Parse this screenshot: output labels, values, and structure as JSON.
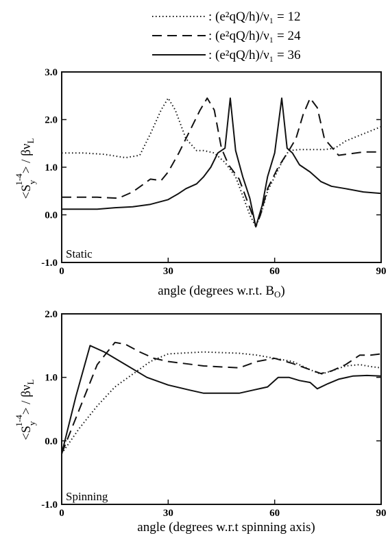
{
  "legend": [
    {
      "style": "dotted",
      "label": ": (e²qQ/h)/ν₁ = 12"
    },
    {
      "style": "dashed",
      "label": ": (e²qQ/h)/ν₁ = 24"
    },
    {
      "style": "solid",
      "label": ": (e²qQ/h)/ν₁ = 36"
    }
  ],
  "chart_data": [
    {
      "type": "line",
      "panel_label": "Static",
      "xlabel": "angle (degrees w.r.t. B",
      "xlabel_sub": "O",
      "xlabel_suffix": ")",
      "ylabel": "<S_y^{1-4}> / βν_L",
      "xlim": [
        0,
        90
      ],
      "ylim": [
        -1.0,
        3.0
      ],
      "xticks": [
        0,
        30,
        60,
        90
      ],
      "yticks": [
        -1.0,
        0.0,
        1.0,
        2.0,
        3.0
      ],
      "ytick_labels": [
        "-1.0",
        "0.0",
        "1.0",
        "2.0",
        "3.0"
      ],
      "series": [
        {
          "style": "dotted",
          "x": [
            0,
            6,
            12,
            18,
            22,
            25,
            28,
            30,
            32,
            35,
            38,
            40,
            43,
            46,
            49,
            51,
            53,
            54.7,
            56.5,
            58,
            60,
            62,
            64,
            67,
            70,
            72,
            74,
            77,
            80,
            85,
            90
          ],
          "y": [
            1.3,
            1.3,
            1.27,
            1.2,
            1.25,
            1.7,
            2.2,
            2.45,
            2.2,
            1.6,
            1.35,
            1.35,
            1.3,
            1.1,
            0.8,
            0.4,
            0.0,
            -0.25,
            0.1,
            0.5,
            0.8,
            1.1,
            1.35,
            1.37,
            1.37,
            1.37,
            1.37,
            1.4,
            1.55,
            1.7,
            1.85
          ]
        },
        {
          "style": "dashed",
          "x": [
            0,
            10,
            16,
            20,
            25,
            28,
            30,
            33,
            36,
            39,
            41,
            43,
            45,
            47,
            50,
            52,
            54,
            54.7,
            56,
            58,
            61,
            64,
            66,
            68,
            70,
            72,
            74,
            78,
            85,
            90
          ],
          "y": [
            0.37,
            0.37,
            0.35,
            0.48,
            0.75,
            0.72,
            0.9,
            1.3,
            1.75,
            2.2,
            2.45,
            2.2,
            1.4,
            1.05,
            0.75,
            0.35,
            -0.05,
            -0.25,
            0.0,
            0.55,
            1.0,
            1.35,
            1.6,
            2.1,
            2.45,
            2.25,
            1.6,
            1.25,
            1.32,
            1.32
          ]
        },
        {
          "style": "solid",
          "x": [
            0,
            10,
            15,
            20,
            25,
            30,
            33,
            35,
            38,
            40,
            42,
            44,
            46,
            47.5,
            49,
            51,
            53,
            54.7,
            56.5,
            58,
            60,
            62,
            63.5,
            65,
            67,
            70,
            73,
            76,
            80,
            85,
            90
          ],
          "y": [
            0.12,
            0.12,
            0.15,
            0.17,
            0.22,
            0.32,
            0.45,
            0.55,
            0.65,
            0.8,
            1.0,
            1.3,
            1.4,
            2.45,
            1.35,
            0.8,
            0.35,
            -0.25,
            0.2,
            0.8,
            1.3,
            2.45,
            1.4,
            1.3,
            1.05,
            0.9,
            0.7,
            0.6,
            0.55,
            0.48,
            0.45
          ]
        }
      ]
    },
    {
      "type": "line",
      "panel_label": "Spinning",
      "xlabel": "angle (degrees w.r.t spinning axis)",
      "ylabel": "<S_y^{1-4}> / βν_L",
      "xlim": [
        0,
        90
      ],
      "ylim": [
        -1.0,
        2.0
      ],
      "xticks": [
        0,
        30,
        60,
        90
      ],
      "yticks": [
        -1.0,
        0.0,
        1.0,
        2.0
      ],
      "ytick_labels": [
        "-1.0",
        "0.0",
        "1.0",
        "2.0"
      ],
      "series": [
        {
          "style": "dotted",
          "x": [
            0,
            5,
            10,
            15,
            20,
            25,
            30,
            40,
            50,
            55,
            60,
            65,
            70,
            73,
            76,
            80,
            84,
            87,
            90
          ],
          "y": [
            -0.2,
            0.2,
            0.55,
            0.85,
            1.05,
            1.25,
            1.37,
            1.4,
            1.38,
            1.35,
            1.3,
            1.25,
            1.12,
            1.05,
            1.1,
            1.18,
            1.2,
            1.17,
            1.15
          ]
        },
        {
          "style": "dashed",
          "x": [
            0,
            5,
            10,
            15,
            18,
            22,
            26,
            30,
            40,
            50,
            55,
            60,
            65,
            70,
            73,
            76,
            80,
            84,
            87,
            90
          ],
          "y": [
            -0.2,
            0.5,
            1.2,
            1.55,
            1.52,
            1.4,
            1.3,
            1.25,
            1.18,
            1.15,
            1.25,
            1.3,
            1.22,
            1.12,
            1.06,
            1.1,
            1.2,
            1.35,
            1.35,
            1.37
          ]
        },
        {
          "style": "solid",
          "x": [
            0,
            4,
            8,
            12,
            18,
            24,
            30,
            36,
            40,
            45,
            50,
            54,
            58,
            61,
            64,
            67,
            70,
            72,
            75,
            78,
            82,
            86,
            90
          ],
          "y": [
            -0.2,
            0.7,
            1.5,
            1.4,
            1.2,
            1.0,
            0.88,
            0.8,
            0.75,
            0.75,
            0.75,
            0.8,
            0.85,
            1.0,
            1.0,
            0.95,
            0.92,
            0.82,
            0.9,
            0.97,
            1.02,
            1.03,
            1.02
          ]
        }
      ]
    }
  ]
}
